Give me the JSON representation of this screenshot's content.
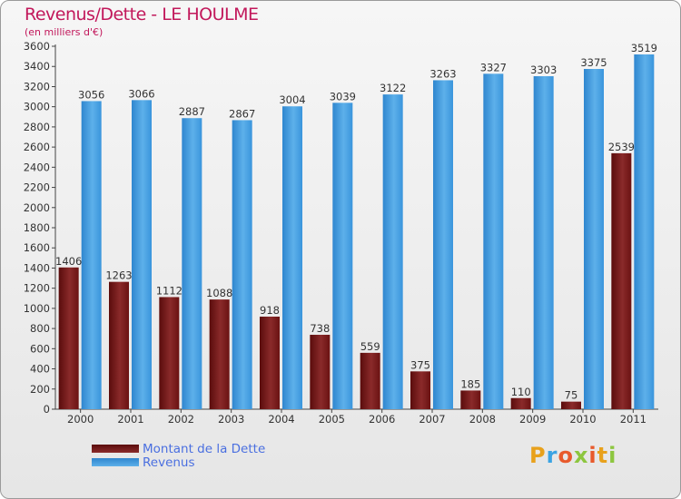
{
  "chart_data": {
    "type": "bar",
    "title": "Revenus/Dette - LE HOULME",
    "subtitle": "(en milliers d'€)",
    "categories": [
      "2000",
      "2001",
      "2002",
      "2003",
      "2004",
      "2005",
      "2006",
      "2007",
      "2008",
      "2009",
      "2010",
      "2011"
    ],
    "series": [
      {
        "name": "Montant de la Dette",
        "color": "#7a1a1a",
        "values": [
          1406,
          1263,
          1112,
          1088,
          918,
          738,
          559,
          375,
          185,
          110,
          75,
          2539
        ]
      },
      {
        "name": "Revenus",
        "color": "#3a95dc",
        "values": [
          3056,
          3066,
          2887,
          2867,
          3004,
          3039,
          3122,
          3263,
          3327,
          3303,
          3375,
          3519
        ]
      }
    ],
    "ylim": [
      0,
      3600
    ],
    "ytick_step": 200,
    "grid": false,
    "legend": "bottom-left"
  },
  "branding": {
    "logo_text": "Proxiti",
    "colors": [
      "#e8a11c",
      "#3aa3e3",
      "#e85a2c",
      "#8dc63f"
    ]
  }
}
